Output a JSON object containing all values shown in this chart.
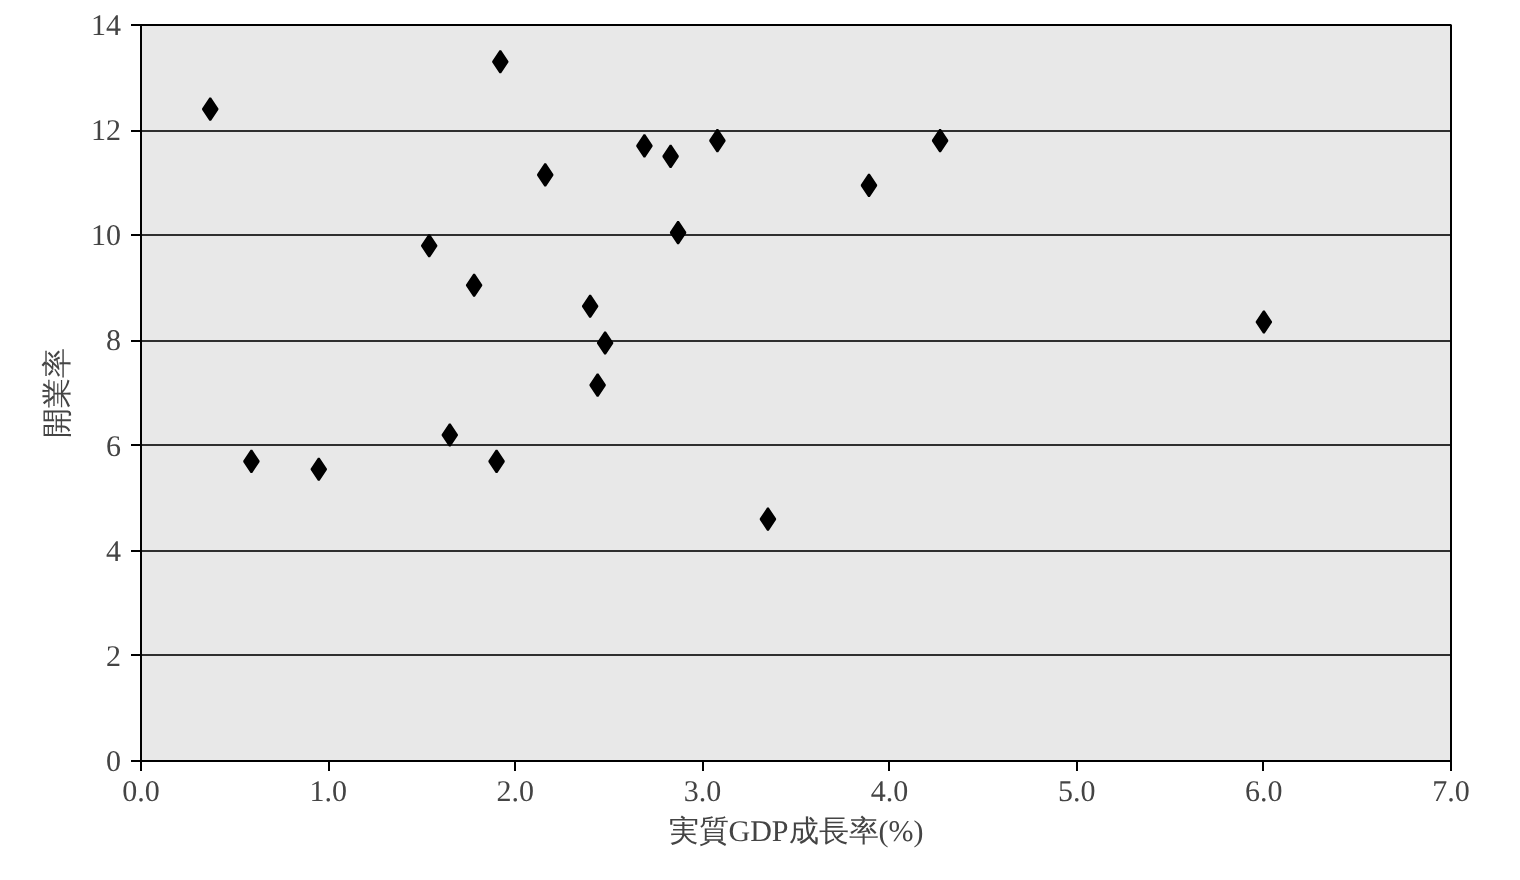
{
  "chart_data": {
    "type": "scatter",
    "xlabel": "実質GDP成長率(%)",
    "ylabel": "開業率",
    "x": [
      0.37,
      0.59,
      0.95,
      1.54,
      1.65,
      1.78,
      1.92,
      1.9,
      2.16,
      2.4,
      2.44,
      2.48,
      2.69,
      2.83,
      2.87,
      3.08,
      3.35,
      3.89,
      4.27,
      6.0
    ],
    "series": [
      {
        "color": "#000000",
        "values": [
          12.4,
          5.7,
          5.55,
          9.8,
          6.2,
          9.05,
          13.3,
          5.7,
          11.15,
          8.65,
          7.15,
          7.95,
          11.7,
          11.5,
          10.05,
          11.8,
          4.6,
          10.95,
          11.8,
          8.35
        ]
      }
    ],
    "xlim": [
      0,
      7
    ],
    "ylim": [
      0,
      14
    ],
    "xticks": [
      {
        "value": 0,
        "label": "0.0"
      },
      {
        "value": 1,
        "label": "1.0"
      },
      {
        "value": 2,
        "label": "2.0"
      },
      {
        "value": 3,
        "label": "3.0"
      },
      {
        "value": 4,
        "label": "4.0"
      },
      {
        "value": 5,
        "label": "5.0"
      },
      {
        "value": 6,
        "label": "6.0"
      },
      {
        "value": 7,
        "label": "7.0"
      }
    ],
    "yticks": [
      0,
      2,
      4,
      6,
      8,
      10,
      12,
      14
    ],
    "grid": "y",
    "marker": "diamond"
  }
}
